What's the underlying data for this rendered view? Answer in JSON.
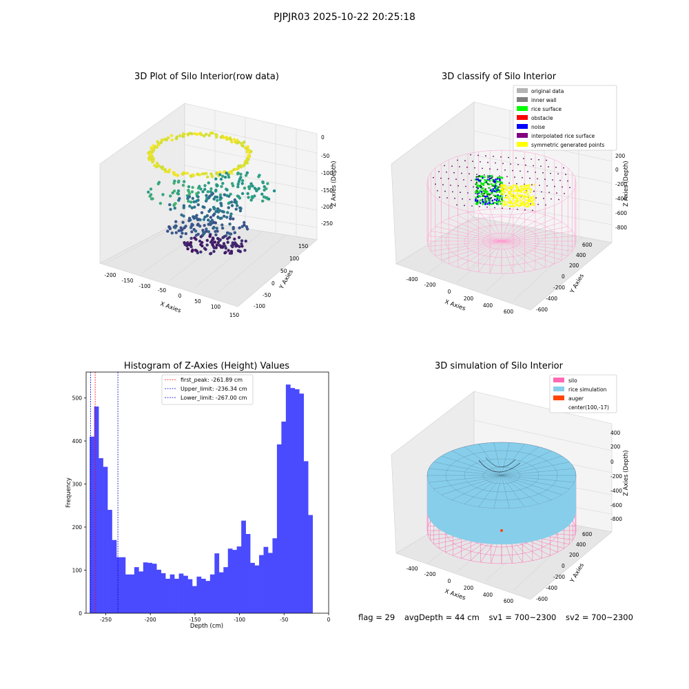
{
  "figure_title": "PJPJR03 2025-10-22 20:25:18",
  "footer": {
    "flag": "flag = 29",
    "avg_depth": "avgDepth = 44 cm",
    "sv1": "sv1 = 700~2300",
    "sv2": "sv2 = 700~2300"
  },
  "chart_data": [
    {
      "type": "scatter",
      "title": "3D Plot of Silo Interior(row data)",
      "xlabel": "X Axies",
      "ylabel": "Y Axies",
      "zlabel": "Z Axies (Depth)",
      "x_ticks": [
        "-200",
        "-150",
        "-100",
        "-50",
        "0",
        "50",
        "100",
        "150"
      ],
      "y_ticks": [
        "-100",
        "-50",
        "0",
        "50",
        "100",
        "150"
      ],
      "z_ticks": [
        "0",
        "-50",
        "-100",
        "-150",
        "-200",
        "-250"
      ],
      "colormap": "viridis"
    },
    {
      "type": "scatter",
      "title": "3D classify of Silo Interior",
      "xlabel": "X Axies",
      "ylabel": "Y Axies",
      "zlabel": "Z Axies (Depth)",
      "x_ticks": [
        "-400",
        "-200",
        "0",
        "200",
        "400",
        "600"
      ],
      "y_ticks": [
        "-600",
        "-400",
        "-200",
        "0",
        "200",
        "400",
        "600"
      ],
      "z_ticks": [
        "200",
        "0",
        "-200",
        "-400",
        "-600",
        "-800"
      ],
      "legend": [
        {
          "label": "original data",
          "color": "#b3b3b3"
        },
        {
          "label": "inner wall",
          "color": "#808080"
        },
        {
          "label": "rice surface",
          "color": "#00ff00"
        },
        {
          "label": "obstacle",
          "color": "#ff0000"
        },
        {
          "label": "noise",
          "color": "#0000ff"
        },
        {
          "label": "interpolated rice surface",
          "color": "#800080"
        },
        {
          "label": "symmetric generated points",
          "color": "#ffff00"
        }
      ]
    },
    {
      "type": "bar",
      "title": "Histogram of Z-Axies (Height) Values",
      "xlabel": "Depth (cm)",
      "ylabel": "Frequency",
      "xlim": [
        -272,
        0
      ],
      "ylim": [
        0,
        560
      ],
      "x_ticks": [
        -250,
        -200,
        -150,
        -100,
        -50,
        0
      ],
      "y_ticks": [
        0,
        100,
        200,
        300,
        400,
        500
      ],
      "bar_color": "#4a4aff",
      "bin_start": -268,
      "bin_width": 5,
      "values": [
        410,
        480,
        360,
        340,
        240,
        170,
        130,
        130,
        90,
        90,
        107,
        97,
        118,
        117,
        115,
        101,
        93,
        80,
        90,
        80,
        92,
        87,
        79,
        63,
        85,
        80,
        75,
        90,
        139,
        95,
        107,
        150,
        147,
        155,
        215,
        184,
        117,
        111,
        135,
        154,
        140,
        174,
        392,
        445,
        531,
        523,
        520,
        510,
        353,
        228
      ],
      "vlines": [
        {
          "label": "first_peak: -261.89 cm",
          "x": -261.89,
          "color": "#ff0000"
        },
        {
          "label": "Upper_limit: -236.34 cm",
          "x": -236.34,
          "color": "#0000cc"
        },
        {
          "label": "Lower_limit: -267.00 cm",
          "x": -267.0,
          "color": "#0000cc"
        }
      ]
    },
    {
      "type": "surface",
      "title": "3D simulation of Silo Interior",
      "xlabel": "X Axies",
      "ylabel": "Y Axies",
      "zlabel": "Z Axies (Depth)",
      "x_ticks": [
        "-400",
        "-200",
        "0",
        "200",
        "400",
        "600"
      ],
      "y_ticks": [
        "-600",
        "-400",
        "-200",
        "0",
        "200",
        "400",
        "600"
      ],
      "z_ticks": [
        "400",
        "200",
        "0",
        "-200",
        "-400",
        "-600",
        "-800"
      ],
      "legend": [
        {
          "label": "silo",
          "color": "#ff69b4"
        },
        {
          "label": "rice simulation",
          "color": "#87ceeb"
        },
        {
          "label": "auger",
          "color": "#ff4500"
        },
        {
          "label": "center(100,-17)",
          "color": ""
        }
      ]
    }
  ]
}
